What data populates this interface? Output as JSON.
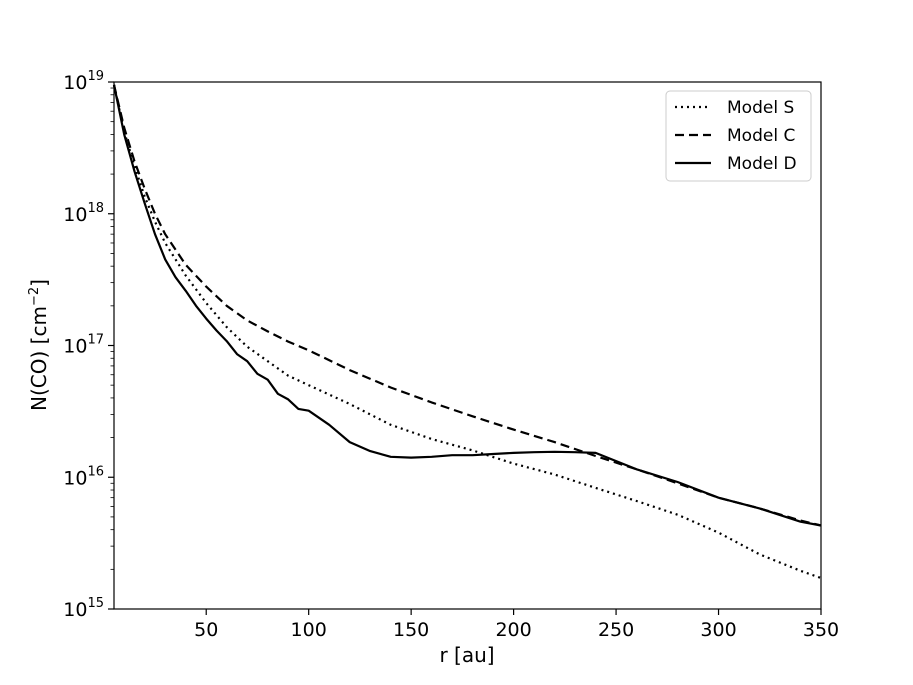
{
  "chart_data": {
    "type": "line",
    "xlabel": "r [au]",
    "ylabel": {
      "base": "N(CO) [cm",
      "exp": "−2",
      "close": "]"
    },
    "xlim": [
      5,
      350
    ],
    "ylim": [
      1000000000000000.0,
      1e+19
    ],
    "yscale": "log",
    "grid": false,
    "legend_position": "top-right",
    "x_ticks": [
      50,
      100,
      150,
      200,
      250,
      300,
      350
    ],
    "y_ticks": [
      {
        "value": 1000000000000000.0,
        "base": "10",
        "exp": "15"
      },
      {
        "value": 1e+16,
        "base": "10",
        "exp": "16"
      },
      {
        "value": 1e+17,
        "base": "10",
        "exp": "17"
      },
      {
        "value": 1e+18,
        "base": "10",
        "exp": "18"
      },
      {
        "value": 1e+19,
        "base": "10",
        "exp": "19"
      }
    ],
    "series": [
      {
        "name": "Model S",
        "style": "dotted",
        "color": "#000000",
        "x": [
          5,
          10,
          15,
          20,
          25,
          30,
          40,
          50,
          60,
          70,
          80,
          90,
          100,
          120,
          140,
          160,
          180,
          200,
          220,
          240,
          260,
          280,
          300,
          320,
          340,
          350
        ],
        "y": [
          9.5e+18,
          4.2e+18,
          2.3e+18,
          1.35e+18,
          8.7e+17,
          6e+17,
          3.4e+17,
          2.1e+17,
          1.38e+17,
          9.8e+16,
          7.6e+16,
          5.9e+16,
          5e+16,
          3.6e+16,
          2.5e+16,
          1.95e+16,
          1.6e+16,
          1.27e+16,
          1.05e+16,
          8300000000000000.0,
          6600000000000000.0,
          5200000000000000.0,
          3800000000000000.0,
          2600000000000000.0,
          1950000000000000.0,
          1720000000000000.0
        ]
      },
      {
        "name": "Model C",
        "style": "dashed",
        "color": "#000000",
        "x": [
          5,
          10,
          15,
          20,
          25,
          30,
          40,
          50,
          60,
          70,
          80,
          90,
          100,
          120,
          140,
          160,
          180,
          200,
          220,
          240,
          260,
          280,
          300,
          320,
          340,
          350
        ],
        "y": [
          9.5e+18,
          4.5e+18,
          2.5e+18,
          1.55e+18,
          1e+18,
          7e+17,
          4.1e+17,
          2.8e+17,
          2e+17,
          1.55e+17,
          1.28e+17,
          1.07e+17,
          9.2e+16,
          6.5e+16,
          4.8e+16,
          3.7e+16,
          2.9e+16,
          2.3e+16,
          1.85e+16,
          1.45e+16,
          1.15e+16,
          9000000000000000.0,
          7000000000000000.0,
          5800000000000000.0,
          4700000000000000.0,
          4300000000000000.0
        ]
      },
      {
        "name": "Model D",
        "style": "solid",
        "color": "#000000",
        "x": [
          5,
          10,
          15,
          20,
          25,
          30,
          35,
          40,
          45,
          50,
          55,
          60,
          65,
          70,
          75,
          80,
          85,
          90,
          95,
          100,
          110,
          120,
          130,
          140,
          150,
          160,
          170,
          180,
          190,
          200,
          210,
          220,
          230,
          240,
          260,
          280,
          300,
          320,
          340,
          350
        ],
        "y": [
          9.5e+18,
          4e+18,
          2.1e+18,
          1.2e+18,
          7e+17,
          4.5e+17,
          3.3e+17,
          2.6e+17,
          2e+17,
          1.6e+17,
          1.3e+17,
          1.08e+17,
          8.6e+16,
          7.6e+16,
          6.1e+16,
          5.5e+16,
          4.3e+16,
          3.9e+16,
          3.3e+16,
          3.2e+16,
          2.5e+16,
          1.85e+16,
          1.58e+16,
          1.43e+16,
          1.41e+16,
          1.43e+16,
          1.47e+16,
          1.47e+16,
          1.5e+16,
          1.53e+16,
          1.55e+16,
          1.56e+16,
          1.55e+16,
          1.53e+16,
          1.15e+16,
          9200000000000000.0,
          7000000000000000.0,
          5800000000000000.0,
          4600000000000000.0,
          4300000000000000.0
        ]
      }
    ]
  }
}
